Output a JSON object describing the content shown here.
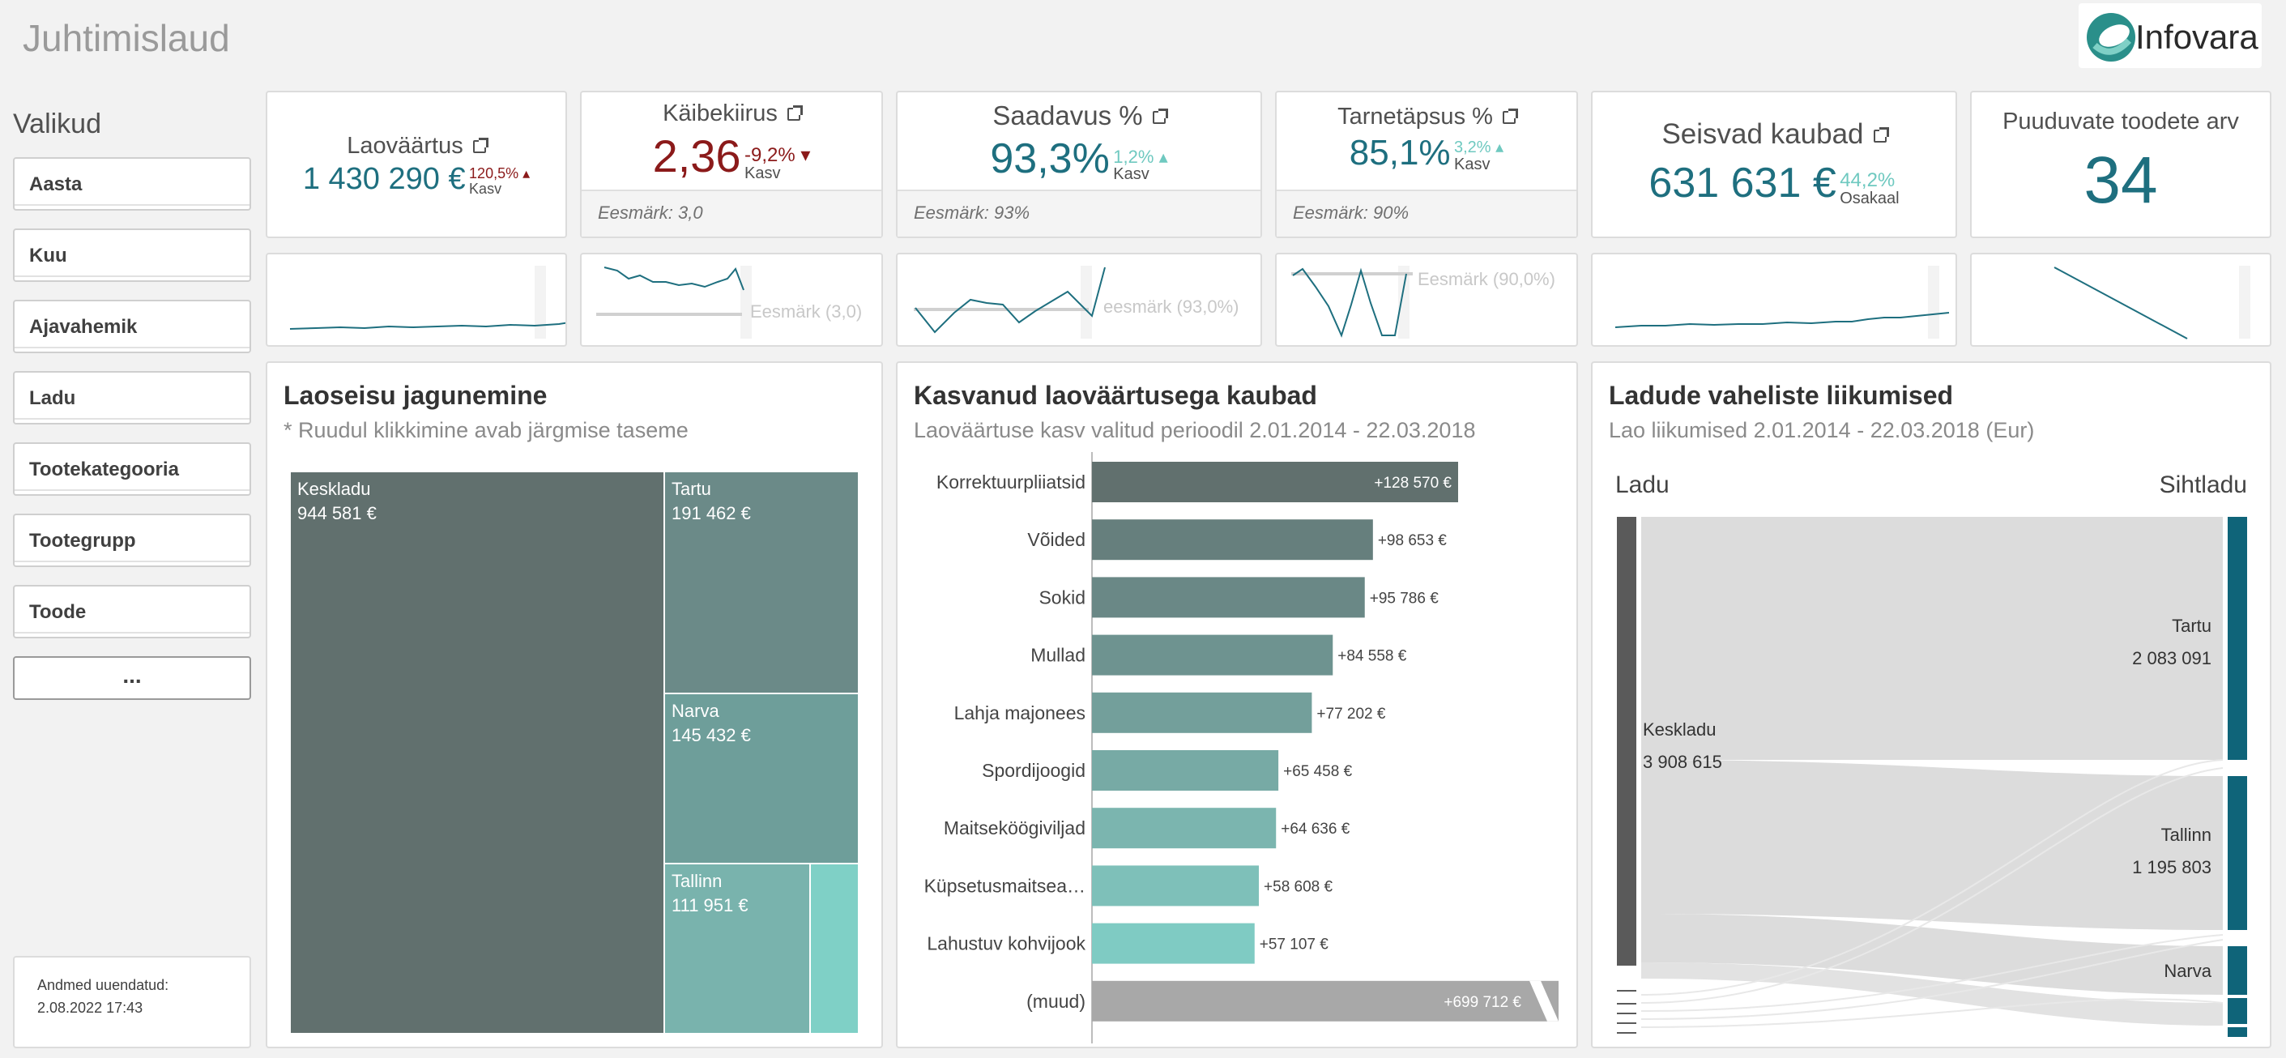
{
  "header": {
    "title": "Juhtimislaud",
    "logo_text": "Infovara"
  },
  "sidebar": {
    "title": "Valikud",
    "filters": [
      "Aasta",
      "Kuu",
      "Ajavahemik",
      "Ladu",
      "Tootekategooria",
      "Tootegrupp",
      "Toode"
    ],
    "more_label": "...",
    "updated_label": "Andmed uuendatud:",
    "updated_value": "2.08.2022 17:43"
  },
  "kpis": [
    {
      "label": "Laoväärtus",
      "value": "1 430 290 €",
      "delta": "120,5%",
      "delta_label": "Kasv",
      "color": "#1e6f7f",
      "delta_color": "#8b1a1a",
      "external": true
    },
    {
      "label": "Käibekiirus",
      "value": "2,36",
      "delta": "-9,2%",
      "delta_label": "Kasv",
      "goal": "Eesmärk: 3,0",
      "color": "#8b1a1a",
      "delta_color": "#8b1a1a",
      "external": true
    },
    {
      "label": "Saadavus %",
      "value": "93,3%",
      "delta": "1,2%",
      "delta_label": "Kasv",
      "goal": "Eesmärk: 93%",
      "color": "#1e6f7f",
      "delta_color": "#6fc9c0",
      "external": true
    },
    {
      "label": "Tarnetäpsus %",
      "value": "85,1%",
      "delta": "3,2%",
      "delta_label": "Kasv",
      "goal": "Eesmärk: 90%",
      "color": "#1e6f7f",
      "delta_color": "#6fc9c0",
      "external": true
    },
    {
      "label": "Seisvad kaubad",
      "value": "631 631 €",
      "delta": "44,2%",
      "delta_label": "Osakaal",
      "color": "#1e6f7f",
      "delta_color": "#6fc9c0",
      "external": true
    },
    {
      "label": "Puuduvate toodete arv",
      "value": "34",
      "color": "#1e6f7f",
      "external": false
    }
  ],
  "sparklines": {
    "goal_kaibekiirus": "Eesmärk (3,0)",
    "goal_saadavus": "eesmärk (93,0%)",
    "goal_tarnetapsus": "Eesmärk (90,0%)"
  },
  "treemap": {
    "title": "Laoseisu jagunemine",
    "subtitle": "* Ruudul klikkimine avab järgmise taseme",
    "cells": [
      {
        "name": "Keskladu",
        "value": "944 581 €",
        "color": "#61706e"
      },
      {
        "name": "Tartu",
        "value": "191 462 €",
        "color": "#6b8a88"
      },
      {
        "name": "Narva",
        "value": "145 432 €",
        "color": "#6e9e9a"
      },
      {
        "name": "Tallinn",
        "value": "111 951 €",
        "color": "#79b3ad"
      },
      {
        "name": "",
        "value": "",
        "color": "#7fd0c6"
      }
    ]
  },
  "bar_section": {
    "title": "Kasvanud laoväärtusega kaubad",
    "subtitle": "Laoväärtuse kasv valitud perioodil 2.01.2014 - 22.03.2018"
  },
  "chart_data": {
    "type": "bar",
    "orientation": "horizontal",
    "categories": [
      "Korrektuurpliiatsid",
      "Võided",
      "Sokid",
      "Mullad",
      "Lahja majonees",
      "Spordijoogid",
      "Maitseköögiviljad",
      "Küpsetusmaitsea…",
      "Lahustuv kohvijook",
      "(muud)"
    ],
    "values": [
      128570,
      98653,
      95786,
      84558,
      77202,
      65458,
      64636,
      58608,
      57107,
      699712
    ],
    "labels": [
      "+128 570 €",
      "+98 653 €",
      "+95 786 €",
      "+84 558 €",
      "+77 202 €",
      "+65 458 €",
      "+64 636 €",
      "+58 608 €",
      "+57 107 €",
      "+699 712 €"
    ],
    "colors": [
      "#61706e",
      "#667f7d",
      "#6a8886",
      "#6e9390",
      "#739f9b",
      "#77aaa5",
      "#7bb5af",
      "#7ec0b9",
      "#7fcbc3",
      "#a8a8a8"
    ],
    "truncated_last": true
  },
  "sankey": {
    "title": "Ladude vaheliste liikumised",
    "subtitle": "Lao liikumised 2.01.2014 - 22.03.2018 (Eur)",
    "left_header": "Ladu",
    "right_header": "Sihtladu",
    "source": {
      "name": "Keskladu",
      "value": "3 908 615"
    },
    "targets": [
      {
        "name": "Tartu",
        "value": "2 083 091"
      },
      {
        "name": "Tallinn",
        "value": "1 195 803"
      },
      {
        "name": "Narva",
        "value": ""
      }
    ]
  },
  "colors": {
    "teal": "#1e6f7f",
    "dark_red": "#8b1a1a",
    "light_teal": "#6fc9c0",
    "sankey_bar": "#0f6479"
  }
}
